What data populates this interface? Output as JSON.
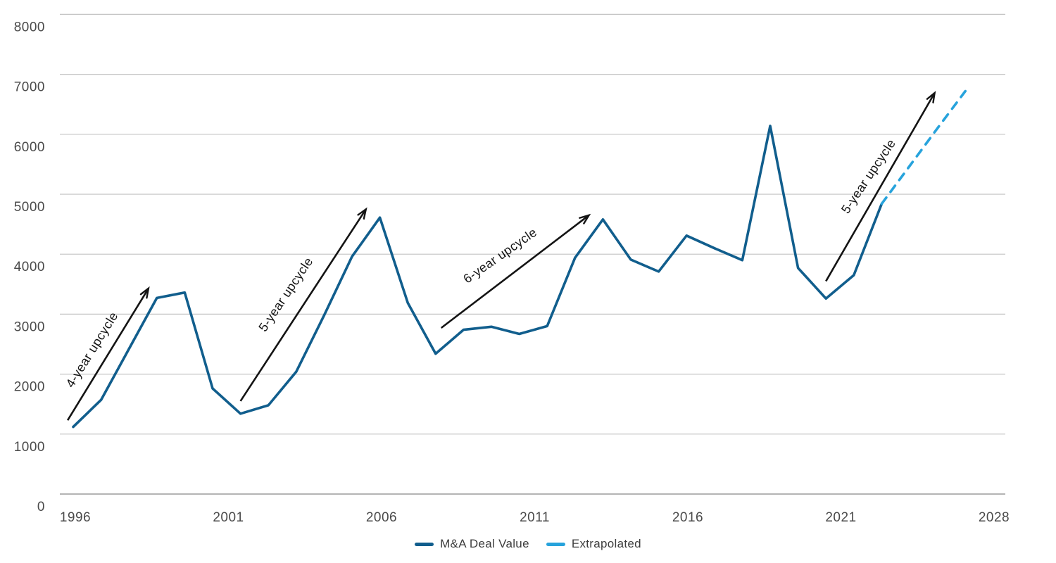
{
  "chart_data": {
    "type": "line",
    "title": "",
    "xlabel": "",
    "ylabel": "",
    "ylim": [
      0,
      8000
    ],
    "y_ticks": [
      0,
      1000,
      2000,
      3000,
      4000,
      5000,
      6000,
      7000,
      8000
    ],
    "x_tick_labels": [
      "1996",
      "2001",
      "2006",
      "2011",
      "2016",
      "2021",
      "2028"
    ],
    "grid": "horizontal",
    "legend_position": "bottom-center",
    "series": [
      {
        "name": "M&A Deal Value",
        "color": "#115e8d",
        "style": "solid",
        "years": [
          1996,
          1997,
          1998,
          1999,
          2000,
          2001,
          2002,
          2003,
          2004,
          2005,
          2006,
          2007,
          2008,
          2009,
          2010,
          2011,
          2012,
          2013,
          2014,
          2015,
          2016,
          2017,
          2018,
          2019,
          2020,
          2021,
          2022,
          2023,
          2024,
          2025
        ],
        "values": [
          1120,
          1570,
          2420,
          3270,
          3360,
          1760,
          1340,
          1480,
          2040,
          2980,
          3960,
          4610,
          3190,
          2340,
          2740,
          2790,
          2670,
          2800,
          3940,
          4580,
          3910,
          3710,
          4310,
          4100,
          3900,
          6140,
          3770,
          3260,
          3650,
          4840
        ]
      },
      {
        "name": "Extrapolated",
        "color": "#27a3dc",
        "style": "dashed",
        "years": [
          2025,
          2026,
          2027,
          2028
        ],
        "values": [
          4840,
          5470,
          6100,
          6720
        ]
      }
    ],
    "annotations": [
      {
        "label": "4-year upcycle",
        "from_year": 1995.8,
        "from_value": 1230,
        "to_year": 1998.7,
        "to_value": 3430,
        "label_year": 1996.8,
        "label_value": 2370,
        "label_angle": -58
      },
      {
        "label": "5-year upcycle",
        "from_year": 2002.0,
        "from_value": 1550,
        "to_year": 2006.5,
        "to_value": 4750,
        "label_year": 2003.75,
        "label_value": 3290,
        "label_angle": -56
      },
      {
        "label": "6-year upcycle",
        "from_year": 2009.2,
        "from_value": 2770,
        "to_year": 2014.5,
        "to_value": 4650,
        "label_year": 2011.4,
        "label_value": 3920,
        "label_angle": -35
      },
      {
        "label": "5-year upcycle",
        "from_year": 2023.0,
        "from_value": 3550,
        "to_year": 2026.9,
        "to_value": 6690,
        "label_year": 2024.65,
        "label_value": 5260,
        "label_angle": -56
      }
    ]
  },
  "legend": {
    "items": [
      {
        "label": "M&A Deal Value",
        "color": "#115e8d"
      },
      {
        "label": "Extrapolated",
        "color": "#27a3dc"
      }
    ]
  },
  "colors": {
    "gridline": "#c4c4c4",
    "axis_line": "#9c9c9c",
    "tick_text": "#4a4a4a",
    "annotation": "#141414",
    "background": "#ffffff"
  }
}
